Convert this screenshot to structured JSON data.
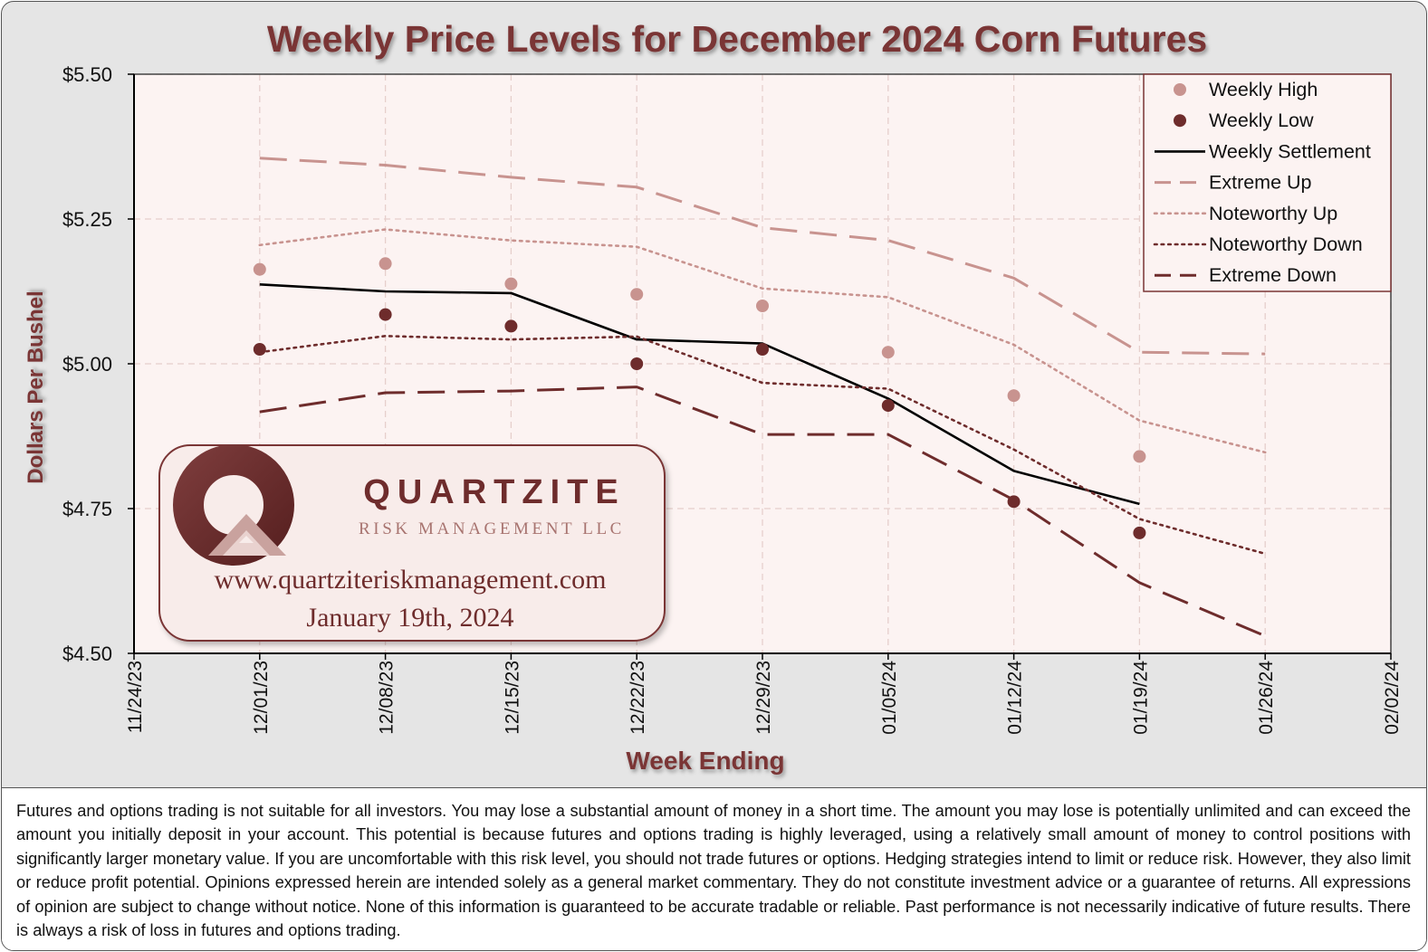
{
  "chart_data": {
    "type": "line",
    "title": "Weekly Price Levels for December 2024 Corn Futures",
    "xlabel": "Week Ending",
    "ylabel": "Dollars Per Bushel",
    "ylim": [
      4.5,
      5.5
    ],
    "yticks": [
      4.5,
      4.75,
      5.0,
      5.25,
      5.5
    ],
    "ytick_labels": [
      "$4.50",
      "$4.75",
      "$5.00",
      "$5.25",
      "$5.50"
    ],
    "categories": [
      "11/24/23",
      "12/01/23",
      "12/08/23",
      "12/15/23",
      "12/22/23",
      "12/29/23",
      "01/05/24",
      "01/12/24",
      "01/19/24",
      "01/26/24",
      "02/02/24"
    ],
    "legend_position": "top-right",
    "grid": true,
    "series": [
      {
        "name": "Weekly High",
        "style": "marker",
        "color": "#c8938f",
        "points": [
          [
            1,
            5.163
          ],
          [
            2,
            5.173
          ],
          [
            3,
            5.138
          ],
          [
            4,
            5.12
          ],
          [
            5,
            5.1
          ],
          [
            6,
            5.02
          ],
          [
            7,
            4.945
          ],
          [
            8,
            4.84
          ]
        ]
      },
      {
        "name": "Weekly Low",
        "style": "marker",
        "color": "#6e2c2c",
        "points": [
          [
            1,
            5.025
          ],
          [
            2,
            5.085
          ],
          [
            3,
            5.065
          ],
          [
            4,
            5.0
          ],
          [
            5,
            5.025
          ],
          [
            6,
            4.928
          ],
          [
            7,
            4.762
          ],
          [
            8,
            4.708
          ]
        ]
      },
      {
        "name": "Weekly Settlement",
        "style": "solid",
        "color": "#000000",
        "points": [
          [
            1,
            5.137
          ],
          [
            2,
            5.125
          ],
          [
            3,
            5.122
          ],
          [
            4,
            5.042
          ],
          [
            5,
            5.035
          ],
          [
            6,
            4.94
          ],
          [
            7,
            4.815
          ],
          [
            8,
            4.758
          ]
        ]
      },
      {
        "name": "Extreme Up",
        "style": "longdash",
        "color": "#c8938f",
        "points": [
          [
            1,
            5.355
          ],
          [
            2,
            5.343
          ],
          [
            3,
            5.322
          ],
          [
            4,
            5.305
          ],
          [
            5,
            5.235
          ],
          [
            6,
            5.213
          ],
          [
            7,
            5.148
          ],
          [
            8,
            5.02
          ],
          [
            9,
            5.017
          ]
        ]
      },
      {
        "name": "Noteworthy Up",
        "style": "dot",
        "color": "#c8938f",
        "points": [
          [
            1,
            5.205
          ],
          [
            2,
            5.232
          ],
          [
            3,
            5.213
          ],
          [
            4,
            5.202
          ],
          [
            5,
            5.13
          ],
          [
            6,
            5.115
          ],
          [
            7,
            5.033
          ],
          [
            8,
            4.902
          ],
          [
            9,
            4.847
          ]
        ]
      },
      {
        "name": "Noteworthy Down",
        "style": "dot",
        "color": "#6e2c2c",
        "points": [
          [
            1,
            5.02
          ],
          [
            2,
            5.048
          ],
          [
            3,
            5.042
          ],
          [
            4,
            5.047
          ],
          [
            5,
            4.967
          ],
          [
            6,
            4.957
          ],
          [
            7,
            4.852
          ],
          [
            8,
            4.732
          ],
          [
            9,
            4.672
          ]
        ]
      },
      {
        "name": "Extreme Down",
        "style": "longdash",
        "color": "#6e2c2c",
        "points": [
          [
            1,
            4.917
          ],
          [
            2,
            4.95
          ],
          [
            3,
            4.953
          ],
          [
            4,
            4.96
          ],
          [
            5,
            4.878
          ],
          [
            6,
            4.878
          ],
          [
            7,
            4.765
          ],
          [
            8,
            4.622
          ],
          [
            9,
            4.53
          ]
        ]
      }
    ]
  },
  "logo": {
    "name": "QUARTZITE",
    "subtitle": "RISK MANAGEMENT LLC",
    "website": "www.quartziteriskmanagement.com",
    "date": "January 19th, 2024"
  },
  "colors": {
    "title": "#7a3535",
    "plot_bg": "#fcf3f2",
    "light": "#c8938f",
    "dark": "#6e2c2c"
  },
  "disclaimer": "Futures and options trading is not suitable for all investors. You may lose a substantial amount of money in a short time. The amount you may lose is potentially unlimited and can exceed the amount you initially deposit in your account. This potential is because futures and options trading is highly leveraged, using a relatively small amount of money to control positions with significantly larger monetary value. If you are uncomfortable with this risk level, you should not trade futures or options. Hedging strategies intend to limit or reduce risk. However, they also limit or reduce profit potential. Opinions expressed herein are intended solely as a general market commentary. They do not constitute investment advice or a guarantee of returns. All expressions of opinion are subject to change without notice. None of this information is guaranteed to be accurate tradable or reliable. Past performance is not necessarily indicative of future results. There is always a risk of loss in futures and options trading."
}
